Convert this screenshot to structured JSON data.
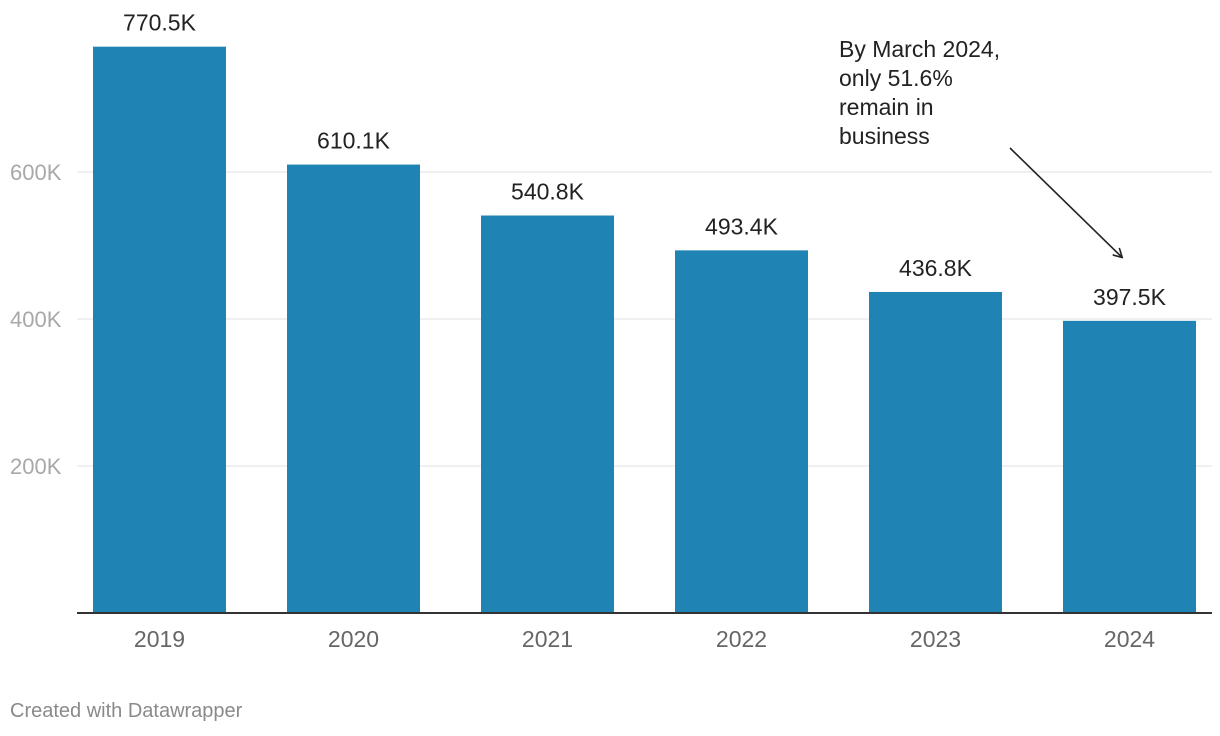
{
  "chart_data": {
    "type": "bar",
    "categories": [
      "2019",
      "2020",
      "2021",
      "2022",
      "2023",
      "2024"
    ],
    "values": [
      770.5,
      610.1,
      540.8,
      493.4,
      436.8,
      397.5
    ],
    "value_labels": [
      "770.5K",
      "610.1K",
      "540.8K",
      "493.4K",
      "436.8K",
      "397.5K"
    ],
    "yticks": [
      200,
      400,
      600
    ],
    "ytick_labels": [
      "200K",
      "400K",
      "600K"
    ],
    "ylim": [
      0,
      800
    ],
    "grid": true,
    "bar_color": "#1f83b4",
    "annotation": {
      "lines": [
        "By March 2024,",
        "only 51.6%",
        "remain in",
        "business"
      ],
      "target_category": "2024"
    }
  },
  "footer": {
    "credit": "Created with Datawrapper"
  }
}
